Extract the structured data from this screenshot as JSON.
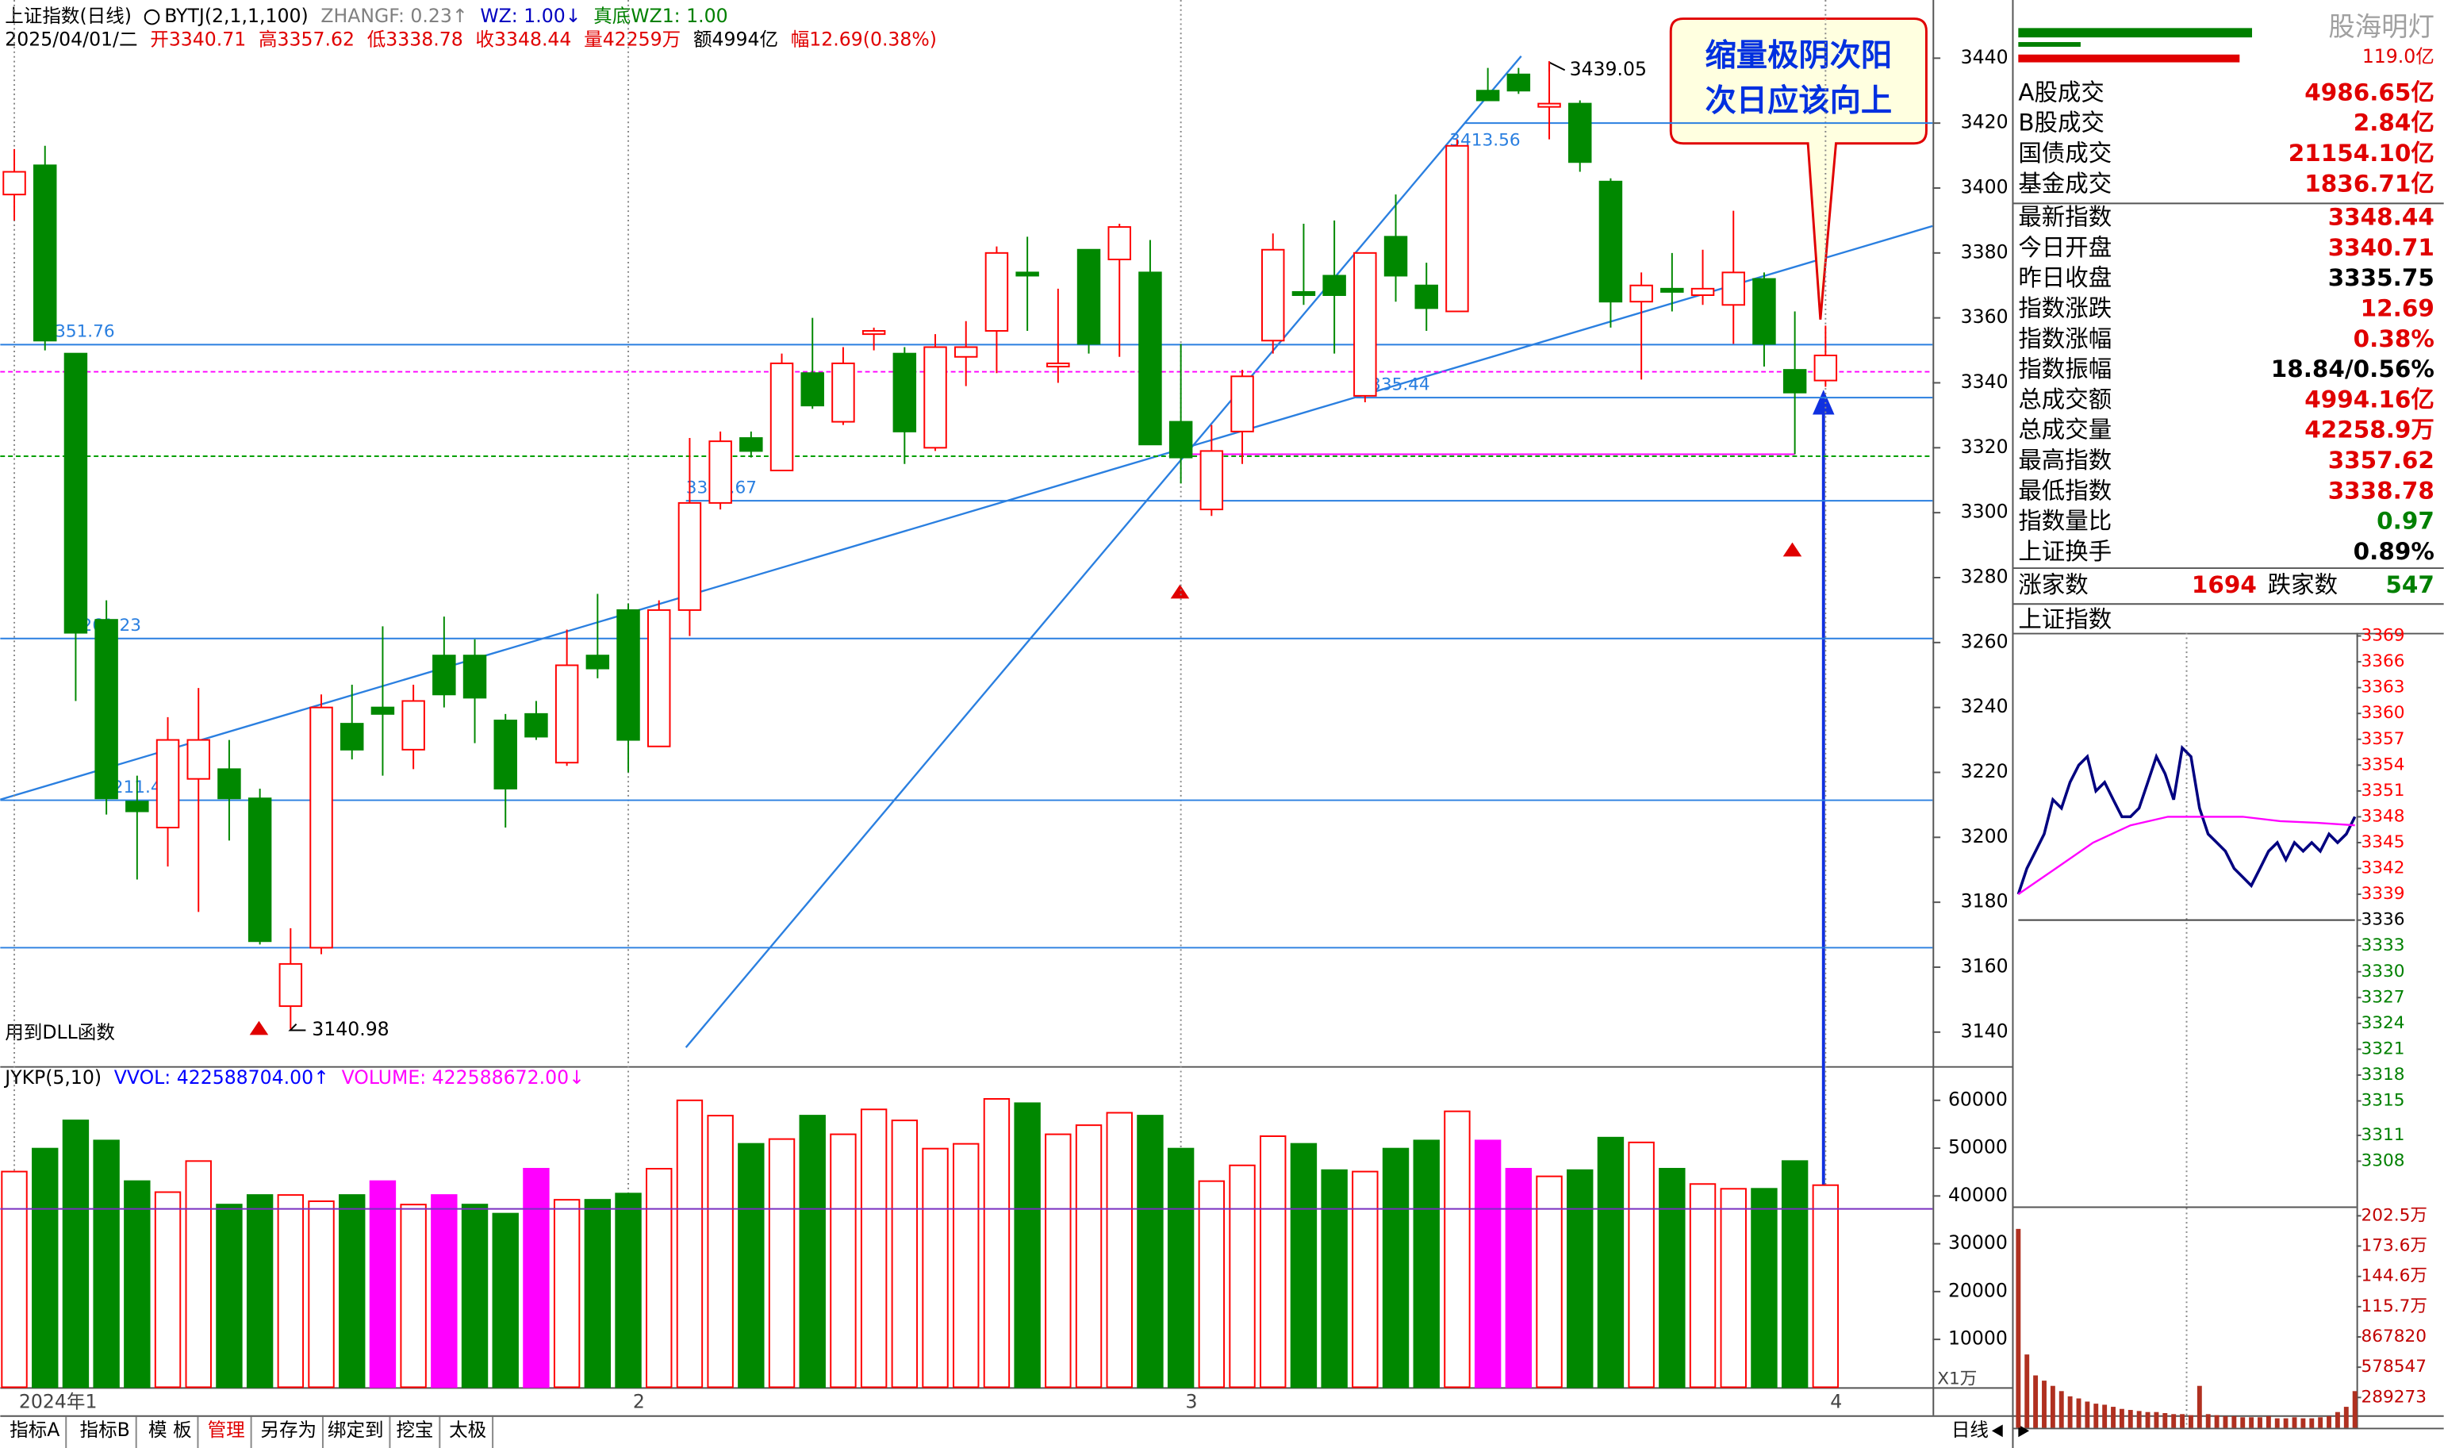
{
  "header": {
    "line1": [
      {
        "text": "上证指数(日线)",
        "color": "#000000"
      },
      {
        "text": "BYTJ(2,1,1,100)",
        "color": "#000000"
      },
      {
        "text": "ZHANGF: 0.23↑",
        "color": "#808080"
      },
      {
        "text": "WZ: 1.00↓",
        "color": "#0000c0"
      },
      {
        "text": "真底WZ1: 1.00",
        "color": "#008000"
      }
    ],
    "line2": [
      {
        "text": "2025/04/01/二",
        "color": "#000000"
      },
      {
        "text": "开3340.71",
        "color": "#e00000"
      },
      {
        "text": "高3357.62",
        "color": "#e00000"
      },
      {
        "text": "低3338.78",
        "color": "#e00000"
      },
      {
        "text": "收3348.44",
        "color": "#e00000"
      },
      {
        "text": "量42259万",
        "color": "#e00000"
      },
      {
        "text": "额4994亿",
        "color": "#000000"
      },
      {
        "text": "幅12.69(0.38%)",
        "color": "#e00000"
      }
    ]
  },
  "chart_data": [
    {
      "type": "candlestick",
      "note": "用到DLL函数",
      "categories": [
        "2024年1",
        null,
        null,
        null,
        null,
        null,
        null,
        null,
        null,
        null,
        null,
        null,
        null,
        null,
        null,
        null,
        null,
        null,
        null,
        null,
        "2",
        null,
        null,
        null,
        null,
        null,
        null,
        null,
        null,
        null,
        null,
        null,
        null,
        null,
        null,
        null,
        null,
        null,
        "3",
        null,
        null,
        null,
        null,
        null,
        null,
        null,
        null,
        null,
        null,
        null,
        null,
        null,
        null,
        null,
        null,
        null,
        null,
        null,
        null,
        "4"
      ],
      "open": [
        3398,
        3407,
        3349,
        3267,
        3211,
        3203,
        3218,
        3221,
        3212,
        3148,
        3166,
        3235,
        3240,
        3227,
        3256,
        3256,
        3236,
        3238,
        3223,
        3256,
        3270,
        3228,
        3270,
        3303,
        3323,
        3313,
        3343,
        3328,
        3355,
        3349,
        3320,
        3348,
        3356,
        3374,
        3345,
        3381,
        3378,
        3374,
        3328,
        3301,
        3325,
        3353,
        3368,
        3373,
        3336,
        3385,
        3370,
        3362,
        3430,
        3435,
        3425,
        3426,
        3402,
        3365,
        3369,
        3367,
        3364,
        3372,
        3344,
        3340.71
      ],
      "high": [
        3412,
        3413,
        3349,
        3273,
        3219,
        3237,
        3246,
        3230,
        3215,
        3172,
        3244,
        3247,
        3265,
        3247,
        3268,
        3261,
        3238,
        3242,
        3264,
        3275,
        3272,
        3273,
        3323,
        3325,
        3325,
        3349,
        3360,
        3351,
        3357,
        3351,
        3355,
        3359,
        3382,
        3385,
        3369,
        3381,
        3389,
        3384,
        3352,
        3327,
        3344,
        3386,
        3389,
        3390,
        3380,
        3398,
        3377,
        3415,
        3437,
        3437,
        3439.05,
        3427,
        3403,
        3374,
        3380,
        3381,
        3393,
        3374,
        3362,
        3357.62
      ],
      "low": [
        3390,
        3350,
        3242,
        3207,
        3187,
        3191,
        3177,
        3199,
        3167,
        3140.98,
        3164,
        3224,
        3219,
        3221,
        3240,
        3229,
        3203,
        3230,
        3222,
        3249,
        3220,
        3228,
        3262,
        3301,
        3317,
        3313,
        3332,
        3327,
        3350,
        3315,
        3319,
        3339,
        3343,
        3356,
        3340,
        3349,
        3348,
        3321,
        3309,
        3299,
        3315,
        3349,
        3364,
        3349,
        3334,
        3365,
        3356,
        3362,
        3427,
        3429,
        3415,
        3405,
        3357,
        3341,
        3362,
        3364,
        3352,
        3345,
        3318,
        3338.78
      ],
      "close": [
        3405,
        3353,
        3263,
        3212,
        3208,
        3230,
        3230,
        3212,
        3168,
        3161,
        3240,
        3227,
        3238,
        3242,
        3244,
        3243,
        3215,
        3231,
        3253,
        3252,
        3230,
        3270,
        3303,
        3322,
        3319,
        3346,
        3333,
        3346,
        3356,
        3325,
        3351,
        3351,
        3380,
        3373,
        3346,
        3352,
        3388,
        3321,
        3317,
        3319,
        3342,
        3381,
        3367,
        3367,
        3380,
        3373,
        3363,
        3413,
        3427,
        3430,
        3426,
        3408,
        3365,
        3370,
        3368,
        3369,
        3374,
        3352,
        3337,
        3348.44
      ],
      "up_color": "#ff0000",
      "down_color": "#008800",
      "ylim": [
        3130,
        3456
      ],
      "yticks": [
        3140,
        3160,
        3180,
        3200,
        3220,
        3240,
        3260,
        3280,
        3300,
        3320,
        3340,
        3360,
        3380,
        3400,
        3420,
        3440
      ],
      "levels": [
        3351.76,
        3335.44,
        3303.67,
        3261.23,
        3211.43
      ],
      "lines": [
        3420,
        3166
      ],
      "annotation": 3413.56,
      "level_color": "#2a7fe0",
      "ref_lines": [
        {
          "value": 3343.4,
          "color": "#ff00ff",
          "dash": true
        },
        {
          "value": 3317.4,
          "color": "#00a000",
          "dash": true
        },
        {
          "value": 3318,
          "color": "#ff00ff",
          "from": 38,
          "to": 58
        }
      ]
    },
    {
      "type": "bar",
      "title": [
        {
          "text": "JYKP(5,10)",
          "color": "#000000"
        },
        {
          "text": "VVOL: 422588704.00↑",
          "color": "#0000ff"
        },
        {
          "text": "VOLUME: 422588672.00↓",
          "color": "#ff00ff"
        }
      ],
      "values": [
        45100,
        49900,
        55800,
        51600,
        43100,
        40800,
        47300,
        38200,
        40200,
        40200,
        38900,
        40200,
        43100,
        38200,
        40200,
        38200,
        36300,
        45700,
        39200,
        39200,
        40500,
        45700,
        60000,
        56800,
        50900,
        51900,
        56800,
        52900,
        58100,
        55800,
        49900,
        50900,
        60300,
        59400,
        52900,
        54800,
        57400,
        56800,
        49900,
        43100,
        46400,
        52500,
        50900,
        45400,
        45100,
        49900,
        51600,
        57700,
        51600,
        45700,
        44100,
        45400,
        52200,
        51200,
        45700,
        42500,
        41500,
        41500,
        47300,
        42259
      ],
      "colors": [
        "#ff0000",
        "#008800",
        "#008800",
        "#008800",
        "#008800",
        "#ff0000",
        "#ff0000",
        "#008800",
        "#008800",
        "#ff0000",
        "#ff0000",
        "#008800",
        "#ff00ff",
        "#ff0000",
        "#ff00ff",
        "#008800",
        "#008800",
        "#ff00ff",
        "#ff0000",
        "#008800",
        "#008800",
        "#ff0000",
        "#ff0000",
        "#ff0000",
        "#008800",
        "#ff0000",
        "#008800",
        "#ff0000",
        "#ff0000",
        "#ff0000",
        "#ff0000",
        "#ff0000",
        "#ff0000",
        "#008800",
        "#ff0000",
        "#ff0000",
        "#ff0000",
        "#008800",
        "#008800",
        "#ff0000",
        "#ff0000",
        "#ff0000",
        "#008800",
        "#008800",
        "#ff0000",
        "#008800",
        "#008800",
        "#ff0000",
        "#ff00ff",
        "#ff00ff",
        "#ff0000",
        "#008800",
        "#008800",
        "#ff0000",
        "#008800",
        "#ff0000",
        "#ff0000",
        "#008800",
        "#008800",
        "#ff0000"
      ],
      "hollow_color": "#ff0000",
      "ma": 37300,
      "ma_color": "#7a30c0",
      "unit": "X1万",
      "ylim": [
        0,
        66500
      ],
      "yticks": [
        10000,
        20000,
        30000,
        40000,
        50000,
        60000
      ]
    },
    {
      "type": "line",
      "title": "上证指数",
      "series": [
        {
          "color": "#000080",
          "values": [
            3339,
            3342,
            3344,
            3346,
            3350,
            3349,
            3352,
            3354,
            3355,
            3351,
            3352,
            3350,
            3348,
            3348,
            3349,
            3352,
            3355,
            3353,
            3350,
            3356,
            3355,
            3349,
            3346,
            3345,
            3344,
            3342,
            3341,
            3340,
            3342,
            3344,
            3345,
            3343,
            3345,
            3344,
            3345,
            3344,
            3346,
            3345,
            3346,
            3348
          ]
        },
        {
          "color": "#ff00ff",
          "values": [
            3339,
            3342,
            3345,
            3347,
            3348,
            3348,
            3348,
            3347.5,
            3347.3,
            3347
          ]
        }
      ],
      "base": 3336,
      "up_color": "#ff0000",
      "down_color": "#008000",
      "ylim": [
        3303,
        3370
      ],
      "yticks": [
        3369,
        3366,
        3363,
        3360,
        3357,
        3354,
        3351,
        3348,
        3345,
        3342,
        3339,
        3336,
        3333,
        3330,
        3327,
        3324,
        3321,
        3318,
        3315,
        3311,
        3308
      ]
    },
    {
      "type": "bar",
      "color": "#b03020",
      "values": [
        1900000,
        700000,
        500000,
        450000,
        400000,
        350000,
        300000,
        280000,
        250000,
        230000,
        220000,
        200000,
        180000,
        170000,
        160000,
        150000,
        150000,
        140000,
        130000,
        130000,
        120000,
        400000,
        130000,
        120000,
        110000,
        110000,
        100000,
        100000,
        100000,
        110000,
        90000,
        90000,
        100000,
        90000,
        90000,
        100000,
        110000,
        150000,
        200000,
        350000
      ],
      "ylim": [
        0,
        2100000
      ],
      "yticks": [
        {
          "value": 2025000,
          "label": "202.5万"
        },
        {
          "value": 1736000,
          "label": "173.6万"
        },
        {
          "value": 1446000,
          "label": "144.6万"
        },
        {
          "value": 1157000,
          "label": "115.7万"
        },
        867820,
        578547,
        289273
      ]
    }
  ],
  "right_panel": {
    "brand": "股海明灯",
    "top_value": "119.0亿",
    "rows": [
      {
        "label": "A股成交",
        "value": "4986.65亿",
        "color": "#e00000"
      },
      {
        "label": "B股成交",
        "value": "2.84亿",
        "color": "#e00000"
      },
      {
        "label": "国债成交",
        "value": "21154.10亿",
        "color": "#e00000"
      },
      {
        "label": "基金成交",
        "value": "1836.71亿",
        "color": "#e00000"
      },
      {
        "label": "最新指数",
        "value": "3348.44",
        "color": "#e00000"
      },
      {
        "label": "今日开盘",
        "value": "3340.71",
        "color": "#e00000"
      },
      {
        "label": "昨日收盘",
        "value": "3335.75",
        "color": "#000000"
      },
      {
        "label": "指数涨跌",
        "value": "12.69",
        "color": "#e00000"
      },
      {
        "label": "指数涨幅",
        "value": "0.38%",
        "color": "#e00000"
      },
      {
        "label": "指数振幅",
        "value": "18.84/0.56%",
        "color": "#000000"
      },
      {
        "label": "总成交额",
        "value": "4994.16亿",
        "color": "#e00000"
      },
      {
        "label": "总成交量",
        "value": "42258.9万",
        "color": "#e00000"
      },
      {
        "label": "最高指数",
        "value": "3357.62",
        "color": "#e00000"
      },
      {
        "label": "最低指数",
        "value": "3338.78",
        "color": "#e00000"
      },
      {
        "label": "指数量比",
        "value": "0.97",
        "color": "#008000"
      },
      {
        "label": "上证换手",
        "value": "0.89%",
        "color": "#000000"
      }
    ],
    "breadth": {
      "up_label": "涨家数",
      "up": "1694",
      "down_label": "跌家数",
      "down": "547"
    }
  },
  "callout": [
    "缩量极阴次阳",
    "次日应该向上"
  ],
  "toolbar": {
    "tabs": [
      "指标A",
      "指标B",
      "模 板",
      "管理",
      "另存为",
      "绑定到",
      "挖宝",
      "太极"
    ],
    "active": 3,
    "period": "日线"
  }
}
